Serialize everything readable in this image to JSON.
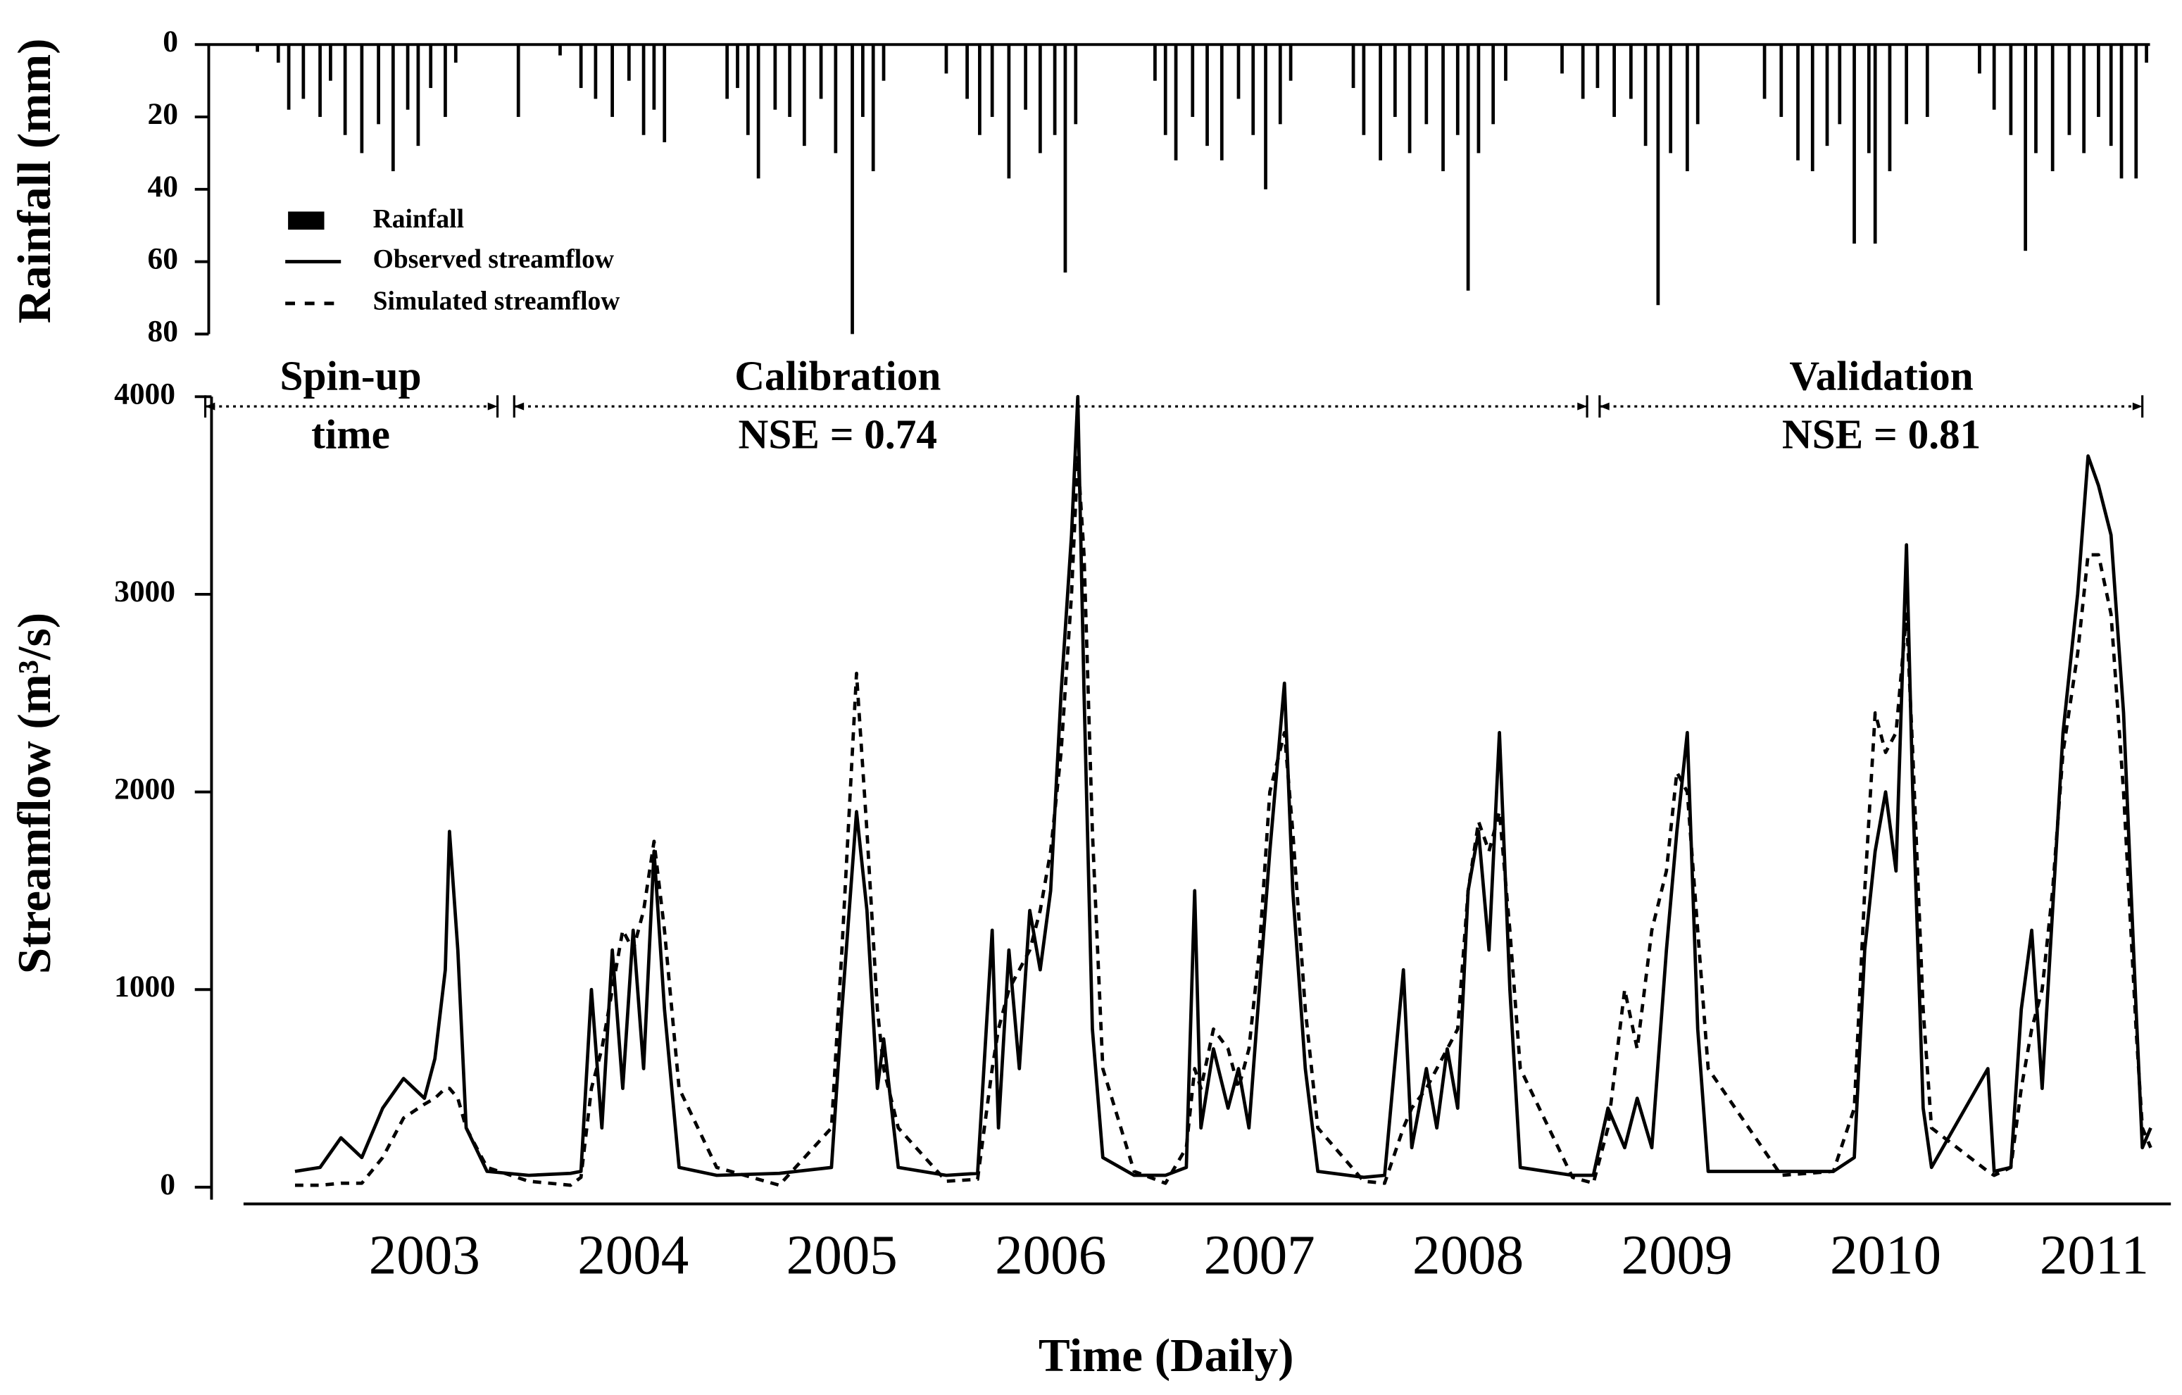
{
  "chart_data": [
    {
      "type": "bar",
      "ylabel": "Rainfall (mm)",
      "inverted": true,
      "ylim": [
        0,
        80
      ],
      "yticks": [
        0,
        20,
        40,
        60,
        80
      ],
      "xlim": [
        2001.98,
        2011.4
      ],
      "x": [
        2002.2,
        2002.3,
        2002.35,
        2002.42,
        2002.5,
        2002.55,
        2002.62,
        2002.7,
        2002.78,
        2002.85,
        2002.92,
        2002.97,
        2003.03,
        2003.1,
        2003.15,
        2003.45,
        2003.65,
        2003.75,
        2003.82,
        2003.9,
        2003.98,
        2004.05,
        2004.1,
        2004.15,
        2004.45,
        2004.5,
        2004.55,
        2004.6,
        2004.68,
        2004.75,
        2004.82,
        2004.9,
        2004.97,
        2005.05,
        2005.1,
        2005.15,
        2005.2,
        2005.5,
        2005.6,
        2005.66,
        2005.72,
        2005.8,
        2005.88,
        2005.95,
        2006.02,
        2006.07,
        2006.12,
        2006.5,
        2006.55,
        2006.6,
        2006.68,
        2006.75,
        2006.82,
        2006.9,
        2006.97,
        2007.03,
        2007.1,
        2007.15,
        2007.45,
        2007.5,
        2007.58,
        2007.65,
        2007.72,
        2007.8,
        2007.88,
        2007.95,
        2008.0,
        2008.05,
        2008.12,
        2008.18,
        2008.45,
        2008.55,
        2008.62,
        2008.7,
        2008.78,
        2008.85,
        2008.91,
        2008.97,
        2009.05,
        2009.1,
        2009.42,
        2009.5,
        2009.58,
        2009.65,
        2009.72,
        2009.78,
        2009.85,
        2009.92,
        2009.95,
        2010.02,
        2010.1,
        2010.2,
        2010.45,
        2010.52,
        2010.6,
        2010.67,
        2010.72,
        2010.8,
        2010.88,
        2010.95,
        2011.02,
        2011.08,
        2011.13,
        2011.2,
        2011.25
      ],
      "series": [
        {
          "name": "Rainfall",
          "color": "#000000",
          "values": [
            2,
            5,
            18,
            15,
            20,
            10,
            25,
            30,
            22,
            35,
            18,
            28,
            12,
            20,
            5,
            20,
            3,
            12,
            15,
            20,
            10,
            25,
            18,
            27,
            15,
            12,
            25,
            37,
            18,
            20,
            28,
            15,
            30,
            80,
            20,
            35,
            10,
            8,
            15,
            25,
            20,
            37,
            18,
            30,
            25,
            63,
            22,
            10,
            25,
            32,
            20,
            28,
            32,
            15,
            25,
            40,
            22,
            10,
            12,
            25,
            32,
            20,
            30,
            22,
            35,
            25,
            68,
            30,
            22,
            10,
            8,
            15,
            12,
            20,
            15,
            28,
            72,
            30,
            35,
            22,
            15,
            20,
            32,
            35,
            28,
            22,
            55,
            30,
            55,
            35,
            22,
            20,
            8,
            18,
            25,
            57,
            30,
            35,
            25,
            30,
            20,
            28,
            37,
            37,
            5
          ]
        }
      ]
    },
    {
      "type": "line",
      "ylabel": "Streamflow (m³/s)",
      "xlabel": "Time (Daily)",
      "ylim": [
        0,
        4000
      ],
      "yticks": [
        0,
        1000,
        2000,
        3000,
        4000
      ],
      "xlim": [
        2001.98,
        2011.4
      ],
      "xticks": [
        2003,
        2004,
        2005,
        2006,
        2007,
        2008,
        2009,
        2010,
        2011
      ],
      "x": [
        2002.38,
        2002.5,
        2002.6,
        2002.7,
        2002.8,
        2002.9,
        2003.0,
        2003.05,
        2003.1,
        2003.12,
        2003.16,
        2003.2,
        2003.3,
        2003.5,
        2003.7,
        2003.75,
        2003.8,
        2003.85,
        2003.9,
        2003.95,
        2004.0,
        2004.05,
        2004.1,
        2004.15,
        2004.22,
        2004.4,
        2004.7,
        2004.95,
        2005.0,
        2005.07,
        2005.12,
        2005.17,
        2005.2,
        2005.27,
        2005.5,
        2005.65,
        2005.72,
        2005.75,
        2005.8,
        2005.85,
        2005.9,
        2005.95,
        2006.0,
        2006.05,
        2006.1,
        2006.13,
        2006.16,
        2006.2,
        2006.25,
        2006.4,
        2006.55,
        2006.65,
        2006.69,
        2006.72,
        2006.78,
        2006.85,
        2006.9,
        2006.95,
        2007.0,
        2007.05,
        2007.12,
        2007.16,
        2007.22,
        2007.28,
        2007.5,
        2007.6,
        2007.69,
        2007.73,
        2007.8,
        2007.85,
        2007.9,
        2007.95,
        2008.0,
        2008.05,
        2008.1,
        2008.15,
        2008.2,
        2008.25,
        2008.5,
        2008.6,
        2008.67,
        2008.75,
        2008.81,
        2008.88,
        2008.95,
        2009.0,
        2009.05,
        2009.1,
        2009.15,
        2009.5,
        2009.75,
        2009.85,
        2009.9,
        2009.95,
        2010.0,
        2010.05,
        2010.1,
        2010.13,
        2010.18,
        2010.22,
        2010.49,
        2010.52,
        2010.6,
        2010.65,
        2010.7,
        2010.75,
        2010.8,
        2010.85,
        2010.92,
        2010.97,
        2011.02,
        2011.08,
        2011.14,
        2011.2,
        2011.23,
        2011.27
      ],
      "series": [
        {
          "name": "Observed streamflow",
          "color": "#000000",
          "style": "solid",
          "values": [
            80,
            100,
            250,
            150,
            400,
            550,
            450,
            650,
            1100,
            1800,
            1200,
            300,
            80,
            60,
            70,
            80,
            1000,
            300,
            1200,
            500,
            1300,
            600,
            1700,
            900,
            100,
            60,
            70,
            100,
            900,
            1900,
            1400,
            500,
            750,
            100,
            60,
            70,
            1300,
            300,
            1200,
            600,
            1400,
            1100,
            1500,
            2500,
            3300,
            4000,
            2500,
            800,
            150,
            60,
            60,
            100,
            1500,
            300,
            700,
            400,
            600,
            300,
            1000,
            1700,
            2550,
            1500,
            600,
            80,
            50,
            60,
            1100,
            200,
            600,
            300,
            700,
            400,
            1500,
            1800,
            1200,
            2300,
            1000,
            100,
            60,
            60,
            400,
            200,
            450,
            200,
            1200,
            1800,
            2300,
            800,
            80,
            80,
            80,
            150,
            1200,
            1700,
            2000,
            1600,
            3250,
            2000,
            400,
            100,
            600,
            80,
            100,
            900,
            1300,
            500,
            1400,
            2300,
            3000,
            3700,
            3550,
            3300,
            2400,
            900,
            200,
            300
          ]
        },
        {
          "name": "Simulated streamflow",
          "color": "#000000",
          "style": "dashed",
          "values": [
            10,
            10,
            20,
            20,
            150,
            350,
            420,
            450,
            500,
            500,
            450,
            300,
            100,
            30,
            10,
            50,
            500,
            700,
            1000,
            1300,
            1200,
            1400,
            1750,
            1300,
            500,
            100,
            10,
            300,
            1200,
            2600,
            1800,
            900,
            600,
            300,
            30,
            40,
            600,
            800,
            1000,
            1100,
            1200,
            1400,
            1700,
            2200,
            3000,
            3700,
            3200,
            1800,
            600,
            80,
            20,
            200,
            600,
            500,
            800,
            700,
            500,
            700,
            1200,
            2000,
            2300,
            1800,
            900,
            300,
            30,
            20,
            300,
            400,
            500,
            600,
            700,
            800,
            1500,
            1850,
            1700,
            1900,
            1300,
            600,
            50,
            20,
            300,
            1000,
            700,
            1300,
            1600,
            2100,
            2000,
            1300,
            600,
            60,
            80,
            400,
            1500,
            2400,
            2200,
            2300,
            2900,
            2200,
            900,
            300,
            80,
            60,
            100,
            500,
            800,
            1000,
            1500,
            2200,
            2700,
            3200,
            3200,
            2900,
            2000,
            800,
            300,
            200
          ]
        }
      ],
      "periods": [
        {
          "label": [
            "Spin-up",
            "time"
          ],
          "start": 2001.95,
          "end": 2003.35
        },
        {
          "label": [
            "Calibration",
            "NSE = 0.74"
          ],
          "start": 2003.43,
          "end": 2008.57
        },
        {
          "label": [
            "Validation",
            "NSE = 0.81"
          ],
          "start": 2008.63,
          "end": 2011.23
        }
      ]
    }
  ]
}
